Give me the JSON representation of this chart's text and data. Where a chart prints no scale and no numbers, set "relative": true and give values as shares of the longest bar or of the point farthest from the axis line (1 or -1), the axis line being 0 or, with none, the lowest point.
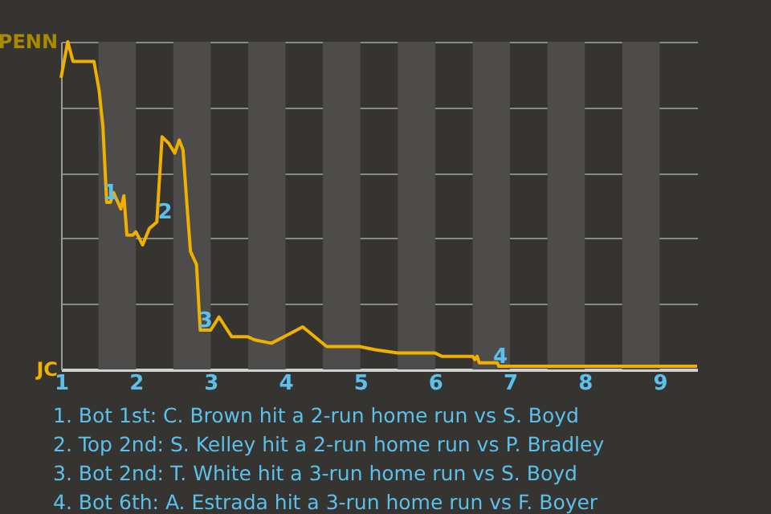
{
  "chart_data": {
    "type": "line",
    "x": [
      1,
      1.09,
      1.16,
      1.44,
      1.51,
      1.56,
      1.61,
      1.66,
      1.7,
      1.76,
      1.8,
      1.84,
      1.88,
      1.96,
      2.0,
      2.09,
      2.18,
      2.28,
      2.35,
      2.44,
      2.52,
      2.58,
      2.63,
      2.69,
      2.73,
      2.81,
      2.86,
      2.92,
      3.0,
      3.11,
      3.28,
      3.49,
      3.59,
      3.81,
      3.98,
      4.23,
      4.55,
      4.99,
      5.2,
      5.5,
      6.0,
      6.09,
      6.5,
      6.53,
      6.56,
      6.59,
      6.83,
      6.85,
      9.5
    ],
    "series": [
      {
        "color": "#f0b000",
        "values": [
          0.89,
          1,
          0.94,
          0.94,
          0.85,
          0.74,
          0.51,
          0.51,
          0.54,
          0.51,
          0.49,
          0.53,
          0.41,
          0.41,
          0.42,
          0.38,
          0.43,
          0.45,
          0.71,
          0.69,
          0.66,
          0.7,
          0.67,
          0.48,
          0.36,
          0.32,
          0.12,
          0.12,
          0.12,
          0.16,
          0.1,
          0.1,
          0.09,
          0.08,
          0.1,
          0.13,
          0.07,
          0.07,
          0.06,
          0.05,
          0.05,
          0.04,
          0.04,
          0.03,
          0.04,
          0.02,
          0.02,
          0.01,
          0.01
        ]
      }
    ],
    "relative": true,
    "xlim": [
      1,
      9.5
    ],
    "xticks": [
      1,
      2,
      3,
      4,
      5,
      6,
      7,
      8,
      9
    ],
    "grid": "y",
    "bands": [
      {
        "axis": "x",
        "from": 1.5,
        "to": 2,
        "color": "#4e4c4a"
      },
      {
        "axis": "x",
        "from": 2.5,
        "to": 3,
        "color": "#4e4c4a"
      },
      {
        "axis": "x",
        "from": 3.5,
        "to": 4,
        "color": "#4e4c4a"
      },
      {
        "axis": "x",
        "from": 4.5,
        "to": 5,
        "color": "#4e4c4a"
      },
      {
        "axis": "x",
        "from": 5.5,
        "to": 6,
        "color": "#4e4c4a"
      },
      {
        "axis": "x",
        "from": 6.5,
        "to": 7,
        "color": "#4e4c4a"
      },
      {
        "axis": "x",
        "from": 7.5,
        "to": 8,
        "color": "#4e4c4a"
      },
      {
        "axis": "x",
        "from": 8.5,
        "to": 9,
        "color": "#4e4c4a"
      }
    ],
    "annotations": [
      "PENN",
      "JC",
      {
        "text": "1",
        "x": 1.66,
        "y": 0.51
      },
      {
        "text": "2",
        "x": 2.39,
        "y": 0.45
      },
      {
        "text": "3",
        "x": 2.93,
        "y": 0.12
      },
      {
        "text": "4",
        "x": 6.87,
        "y": 0.01
      },
      "1. Bot 1st: C. Brown hit a 2-run home run vs S. Boyd",
      "2. Top 2nd: S. Kelley hit a 2-run home run vs P. Bradley",
      "3. Bot 2nd: T. White hit a 3-run home run vs S. Boyd",
      "4. Bot 6th: A. Estrada hit a 3-run home run vs F. Boyer"
    ]
  }
}
